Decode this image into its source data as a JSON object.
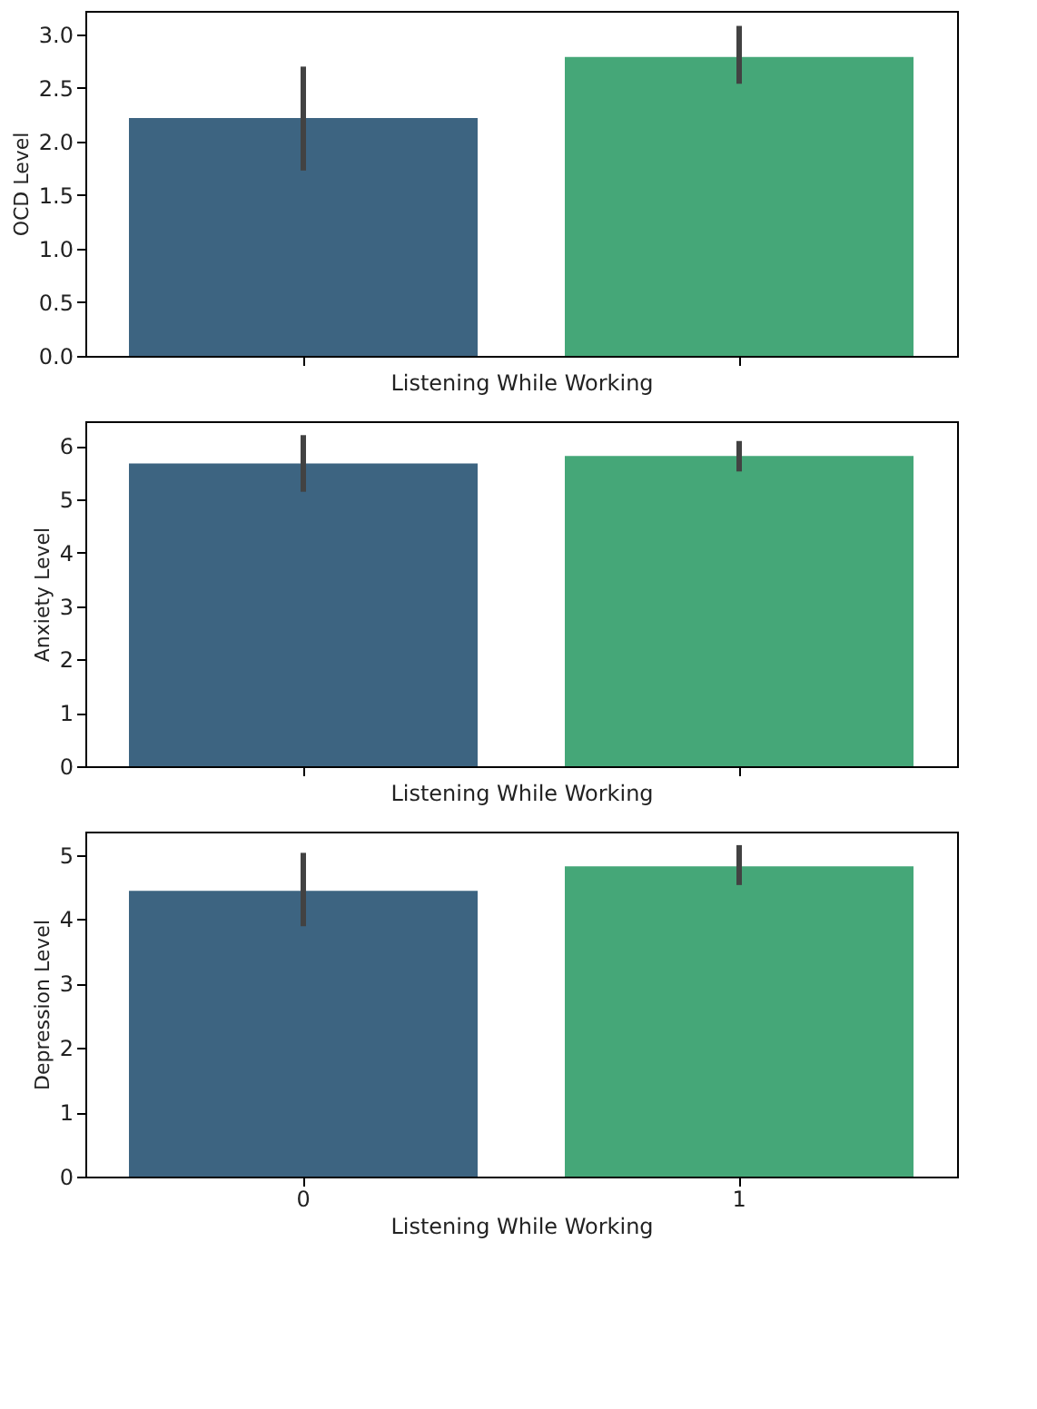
{
  "chart_data": [
    {
      "type": "bar",
      "categories": [
        "0",
        "1"
      ],
      "values": [
        2.22,
        2.79
      ],
      "colors": [
        "#3d6481",
        "#45a778"
      ],
      "errors": [
        [
          1.73,
          2.7
        ],
        [
          2.54,
          3.08
        ]
      ],
      "xlabel": "Listening While Working",
      "ylabel": "OCD Level",
      "ylim": [
        0,
        3.22
      ],
      "yticks": [
        {
          "value": 0,
          "label": "0.0"
        },
        0.5,
        {
          "value": 1,
          "label": "1.0"
        },
        1.5,
        {
          "value": 2,
          "label": "2.0"
        },
        2.5,
        {
          "value": 3,
          "label": "3.0"
        }
      ],
      "tick_labels": "y"
    },
    {
      "type": "bar",
      "categories": [
        "0",
        "1"
      ],
      "values": [
        5.67,
        5.81
      ],
      "colors": [
        "#3d6481",
        "#45a778"
      ],
      "errors": [
        [
          5.14,
          6.2
        ],
        [
          5.52,
          6.09
        ]
      ],
      "xlabel": "Listening While Working",
      "ylabel": "Anxiety Level",
      "ylim": [
        0,
        6.46
      ],
      "yticks": [
        0,
        1,
        2,
        3,
        4,
        5,
        6
      ],
      "tick_labels": "y"
    },
    {
      "type": "bar",
      "categories": [
        "0",
        "1"
      ],
      "values": [
        4.44,
        4.82
      ],
      "colors": [
        "#3d6481",
        "#45a778"
      ],
      "errors": [
        [
          3.89,
          5.03
        ],
        [
          4.53,
          5.15
        ]
      ],
      "xlabel": "Listening While Working",
      "ylabel": "Depression Level",
      "ylim": [
        0,
        5.36
      ],
      "yticks": [
        0,
        1,
        2,
        3,
        4,
        5
      ]
    }
  ]
}
